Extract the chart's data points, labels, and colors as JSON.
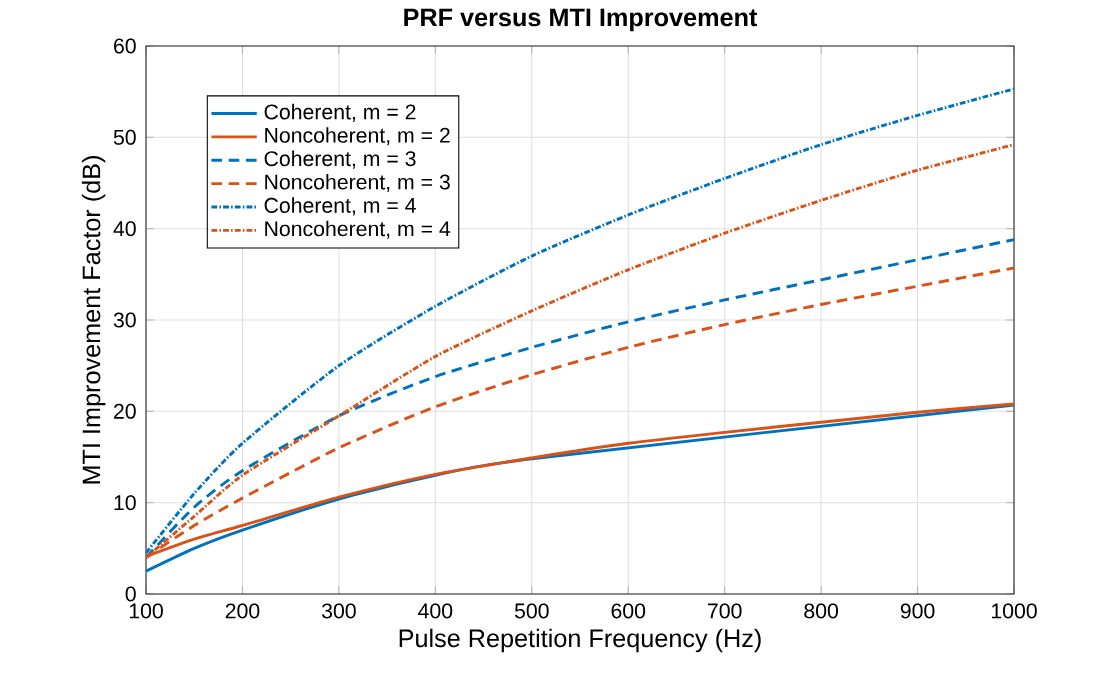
{
  "chart_data": {
    "type": "line",
    "title": "PRF versus MTI Improvement",
    "xlabel": "Pulse Repetition Frequency (Hz)",
    "ylabel": "MTI Improvement Factor (dB)",
    "x": [
      100,
      150,
      200,
      300,
      400,
      500,
      600,
      700,
      800,
      900,
      1000
    ],
    "series": [
      {
        "name": "Coherent, m = 2",
        "color": "#0072bd",
        "line_style": "solid",
        "values": [
          2.5,
          5,
          7,
          10.4,
          13,
          14.8,
          null,
          null,
          null,
          null,
          20.7
        ]
      },
      {
        "name": "Noncoherent, m = 2",
        "color": "#d95319",
        "line_style": "solid",
        "values": [
          4.1,
          6,
          7.5,
          10.6,
          13.1,
          14.9,
          16.5,
          17.7,
          18.8,
          19.9,
          20.8
        ]
      },
      {
        "name": "Coherent, m = 3",
        "color": "#0072bd",
        "line_style": "dashed",
        "values": [
          4,
          9.5,
          13.5,
          19.5,
          23.8,
          27,
          29.8,
          32.2,
          34.4,
          36.6,
          38.8
        ]
      },
      {
        "name": "Noncoherent, m = 3",
        "color": "#d95319",
        "line_style": "dashed",
        "values": [
          4,
          7.5,
          10.5,
          16,
          20.5,
          24,
          27,
          29.5,
          31.7,
          33.7,
          35.7
        ]
      },
      {
        "name": "Coherent, m = 4",
        "color": "#0072bd",
        "line_style": "dotted",
        "values": [
          4.5,
          11,
          16.5,
          25,
          31.5,
          37,
          41.5,
          45.5,
          49.2,
          52.4,
          55.3
        ]
      },
      {
        "name": "Noncoherent, m = 4",
        "color": "#d95319",
        "line_style": "dotted",
        "values": [
          4,
          8.5,
          13,
          19.5,
          26,
          31,
          35.5,
          39.5,
          43.1,
          46.4,
          49.2
        ]
      }
    ],
    "xlim": [
      100,
      1000
    ],
    "ylim": [
      0,
      60
    ],
    "xticks": [
      100,
      200,
      300,
      400,
      500,
      600,
      700,
      800,
      900,
      1000
    ],
    "yticks": [
      0,
      10,
      20,
      30,
      40,
      50,
      60
    ],
    "grid": true,
    "legend": "top left",
    "marker": "none"
  }
}
